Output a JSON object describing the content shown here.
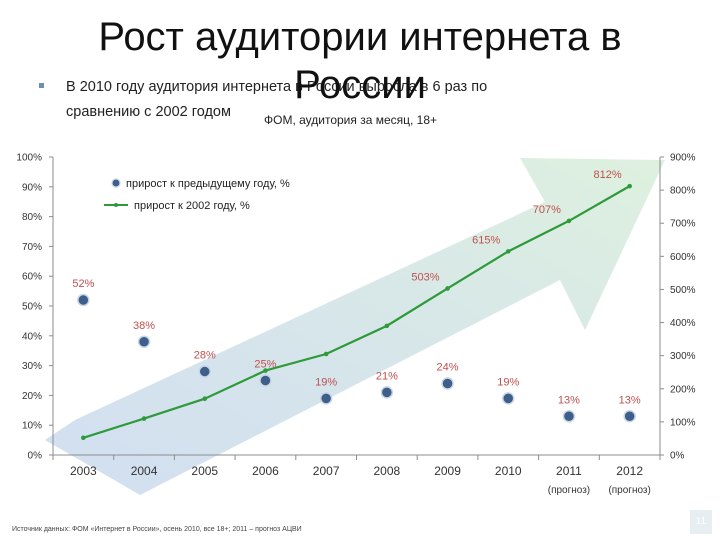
{
  "slide": {
    "title_line1": "Рост аудитории интернета в",
    "title_line2": "России",
    "bullet_line1": "В 2010 году аудитория интернета в России выросла в 6 раз по",
    "bullet_line2": "сравнению с 2002 годом",
    "subtitle": "ФОМ, аудитория за месяц, 18+",
    "footnote": "Источник данных: ФОМ «Интернет в России», осень 2010, все 18+; 2011 – прогноз АЦВИ",
    "page_number": "11"
  },
  "colors": {
    "series_dots": "#3e5f8a",
    "series_line": "#2e9a3a",
    "arrow_start": "#7fa3d9",
    "arrow_end": "#b6e0b8",
    "dot_label": "#c0504d",
    "line_label": "#c0504d"
  },
  "chart_data": {
    "type": "line",
    "categories": [
      "2003",
      "2004",
      "2005",
      "2006",
      "2007",
      "2008",
      "2009",
      "2010",
      "2011",
      "2012"
    ],
    "category_sublabels": [
      "",
      "",
      "",
      "",
      "",
      "",
      "",
      "",
      "(прогноз)",
      "(прогноз)"
    ],
    "y_left": {
      "ylim": [
        0,
        100
      ],
      "ticks": [
        "0%",
        "10%",
        "20%",
        "30%",
        "40%",
        "50%",
        "60%",
        "70%",
        "80%",
        "90%",
        "100%"
      ]
    },
    "y_right": {
      "ylim": [
        0,
        900
      ],
      "ticks": [
        "0%",
        "100%",
        "200%",
        "300%",
        "400%",
        "500%",
        "600%",
        "700%",
        "800%",
        "900%"
      ]
    },
    "legend_position": "top-left",
    "series": [
      {
        "name": "прирост к предыдущему году, %",
        "axis": "left",
        "style": "markers",
        "values": [
          52,
          38,
          28,
          25,
          19,
          21,
          24,
          19,
          13,
          13
        ],
        "labels": [
          "52%",
          "38%",
          "28%",
          "25%",
          "19%",
          "21%",
          "24%",
          "19%",
          "13%",
          "13%"
        ]
      },
      {
        "name": "прирост к 2002 году, %",
        "axis": "right",
        "style": "line",
        "values": [
          52,
          110,
          170,
          255,
          305,
          390,
          503,
          615,
          707,
          812
        ],
        "labels": [
          "",
          "",
          "",
          "",
          "",
          "",
          "503%",
          "615%",
          "707%",
          "812%"
        ]
      }
    ]
  }
}
